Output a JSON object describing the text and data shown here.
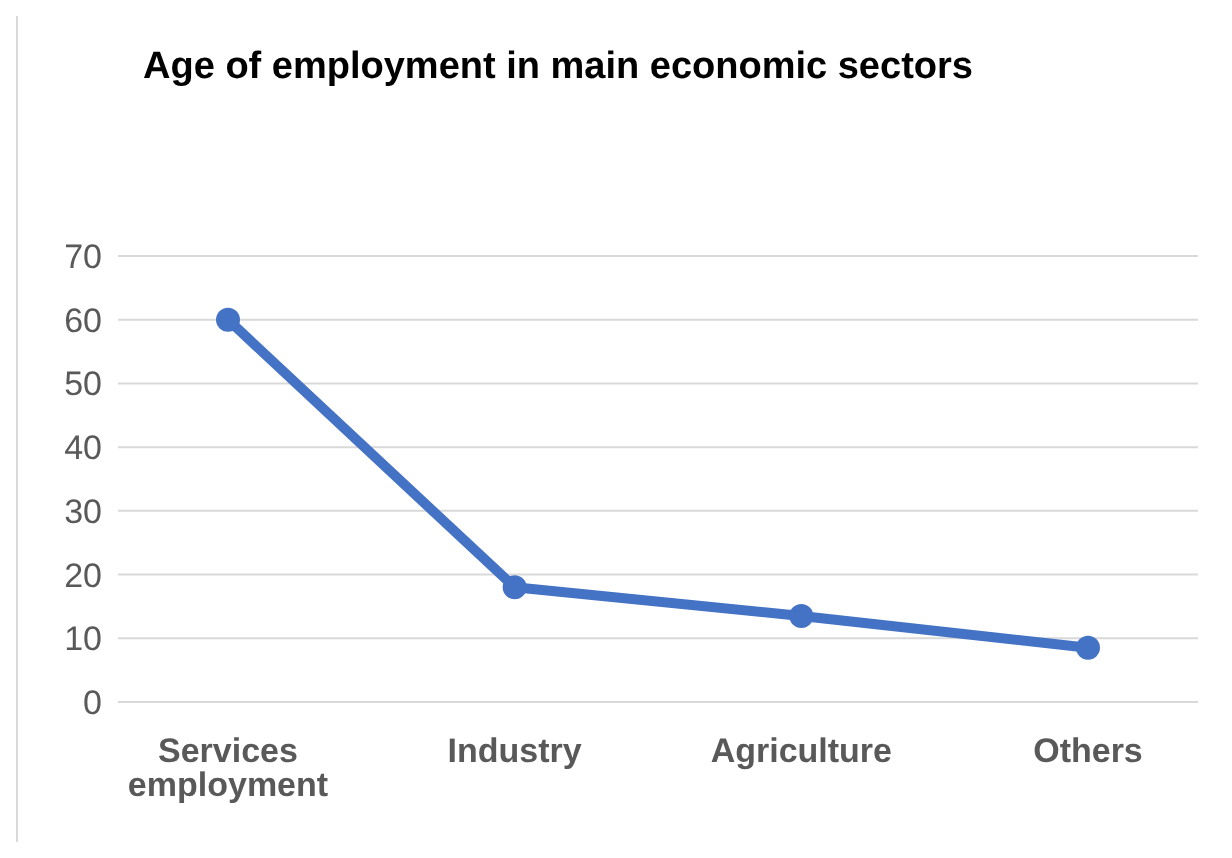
{
  "chart_data": {
    "type": "line",
    "title": "Age of employment in main economic sectors",
    "categories": [
      "Services employment",
      "Industry",
      "Agriculture",
      "Others"
    ],
    "series": [
      {
        "color": "#4472c4",
        "values": [
          60,
          18,
          13.5,
          8.5
        ]
      }
    ],
    "ylim": [
      0,
      70
    ],
    "yticks": [
      0,
      10,
      20,
      30,
      40,
      50,
      60,
      70
    ],
    "grid": "y",
    "legend": false,
    "marker": "circle",
    "line_style": "solid"
  }
}
